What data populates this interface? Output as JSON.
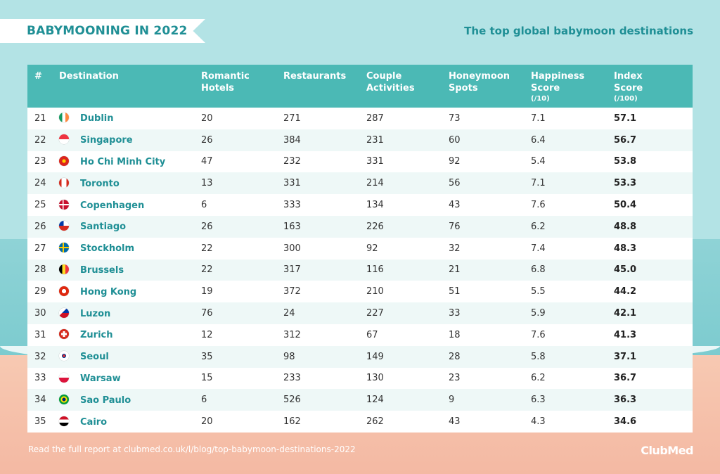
{
  "header": {
    "title": "BABYMOONING IN 2022",
    "subtitle": "The top global babymoon destinations"
  },
  "columns": [
    {
      "label": "#",
      "sub": ""
    },
    {
      "label": "Destination",
      "sub": ""
    },
    {
      "label": "Romantic Hotels",
      "sub": ""
    },
    {
      "label": "Restaurants",
      "sub": ""
    },
    {
      "label": "Couple Activities",
      "sub": ""
    },
    {
      "label": "Honeymoon Spots",
      "sub": ""
    },
    {
      "label": "Happiness Score",
      "sub": "(/10)"
    },
    {
      "label": "Index Score",
      "sub": "(/100)"
    }
  ],
  "rows": [
    {
      "rank": "21",
      "city": "Dublin",
      "flag": "ireland-flag-icon",
      "hotels": "20",
      "restaurants": "271",
      "activities": "287",
      "spots": "73",
      "happiness": "7.1",
      "index": "57.1"
    },
    {
      "rank": "22",
      "city": "Singapore",
      "flag": "singapore-flag-icon",
      "hotels": "26",
      "restaurants": "384",
      "activities": "231",
      "spots": "60",
      "happiness": "6.4",
      "index": "56.7"
    },
    {
      "rank": "23",
      "city": "Ho Chi Minh City",
      "flag": "vietnam-flag-icon",
      "hotels": "47",
      "restaurants": "232",
      "activities": "331",
      "spots": "92",
      "happiness": "5.4",
      "index": "53.8"
    },
    {
      "rank": "24",
      "city": "Toronto",
      "flag": "canada-flag-icon",
      "hotels": "13",
      "restaurants": "331",
      "activities": "214",
      "spots": "56",
      "happiness": "7.1",
      "index": "53.3"
    },
    {
      "rank": "25",
      "city": "Copenhagen",
      "flag": "denmark-flag-icon",
      "hotels": "6",
      "restaurants": "333",
      "activities": "134",
      "spots": "43",
      "happiness": "7.6",
      "index": "50.4"
    },
    {
      "rank": "26",
      "city": "Santiago",
      "flag": "chile-flag-icon",
      "hotels": "26",
      "restaurants": "163",
      "activities": "226",
      "spots": "76",
      "happiness": "6.2",
      "index": "48.8"
    },
    {
      "rank": "27",
      "city": "Stockholm",
      "flag": "sweden-flag-icon",
      "hotels": "22",
      "restaurants": "300",
      "activities": "92",
      "spots": "32",
      "happiness": "7.4",
      "index": "48.3"
    },
    {
      "rank": "28",
      "city": "Brussels",
      "flag": "belgium-flag-icon",
      "hotels": "22",
      "restaurants": "317",
      "activities": "116",
      "spots": "21",
      "happiness": "6.8",
      "index": "45.0"
    },
    {
      "rank": "29",
      "city": "Hong Kong",
      "flag": "hong-kong-flag-icon",
      "hotels": "19",
      "restaurants": "372",
      "activities": "210",
      "spots": "51",
      "happiness": "5.5",
      "index": "44.2"
    },
    {
      "rank": "30",
      "city": "Luzon",
      "flag": "philippines-flag-icon",
      "hotels": "76",
      "restaurants": "24",
      "activities": "227",
      "spots": "33",
      "happiness": "5.9",
      "index": "42.1"
    },
    {
      "rank": "31",
      "city": "Zurich",
      "flag": "switzerland-flag-icon",
      "hotels": "12",
      "restaurants": "312",
      "activities": "67",
      "spots": "18",
      "happiness": "7.6",
      "index": "41.3"
    },
    {
      "rank": "32",
      "city": "Seoul",
      "flag": "south-korea-flag-icon",
      "hotels": "35",
      "restaurants": "98",
      "activities": "149",
      "spots": "28",
      "happiness": "5.8",
      "index": "37.1"
    },
    {
      "rank": "33",
      "city": "Warsaw",
      "flag": "poland-flag-icon",
      "hotels": "15",
      "restaurants": "233",
      "activities": "130",
      "spots": "23",
      "happiness": "6.2",
      "index": "36.7"
    },
    {
      "rank": "34",
      "city": "Sao Paulo",
      "flag": "brazil-flag-icon",
      "hotels": "6",
      "restaurants": "526",
      "activities": "124",
      "spots": "9",
      "happiness": "6.3",
      "index": "36.3"
    },
    {
      "rank": "35",
      "city": "Cairo",
      "flag": "egypt-flag-icon",
      "hotels": "20",
      "restaurants": "162",
      "activities": "262",
      "spots": "43",
      "happiness": "4.3",
      "index": "34.6"
    }
  ],
  "footer": {
    "link_text": "Read the full report at clubmed.co.uk/l/blog/top-babymoon-destinations-2022",
    "logo": "ClubMed"
  },
  "colors": {
    "accent": "#1f8f95",
    "header_bg": "#4bb9b5",
    "sky": "#b3e3e5",
    "sand": "#f4b9a3"
  }
}
